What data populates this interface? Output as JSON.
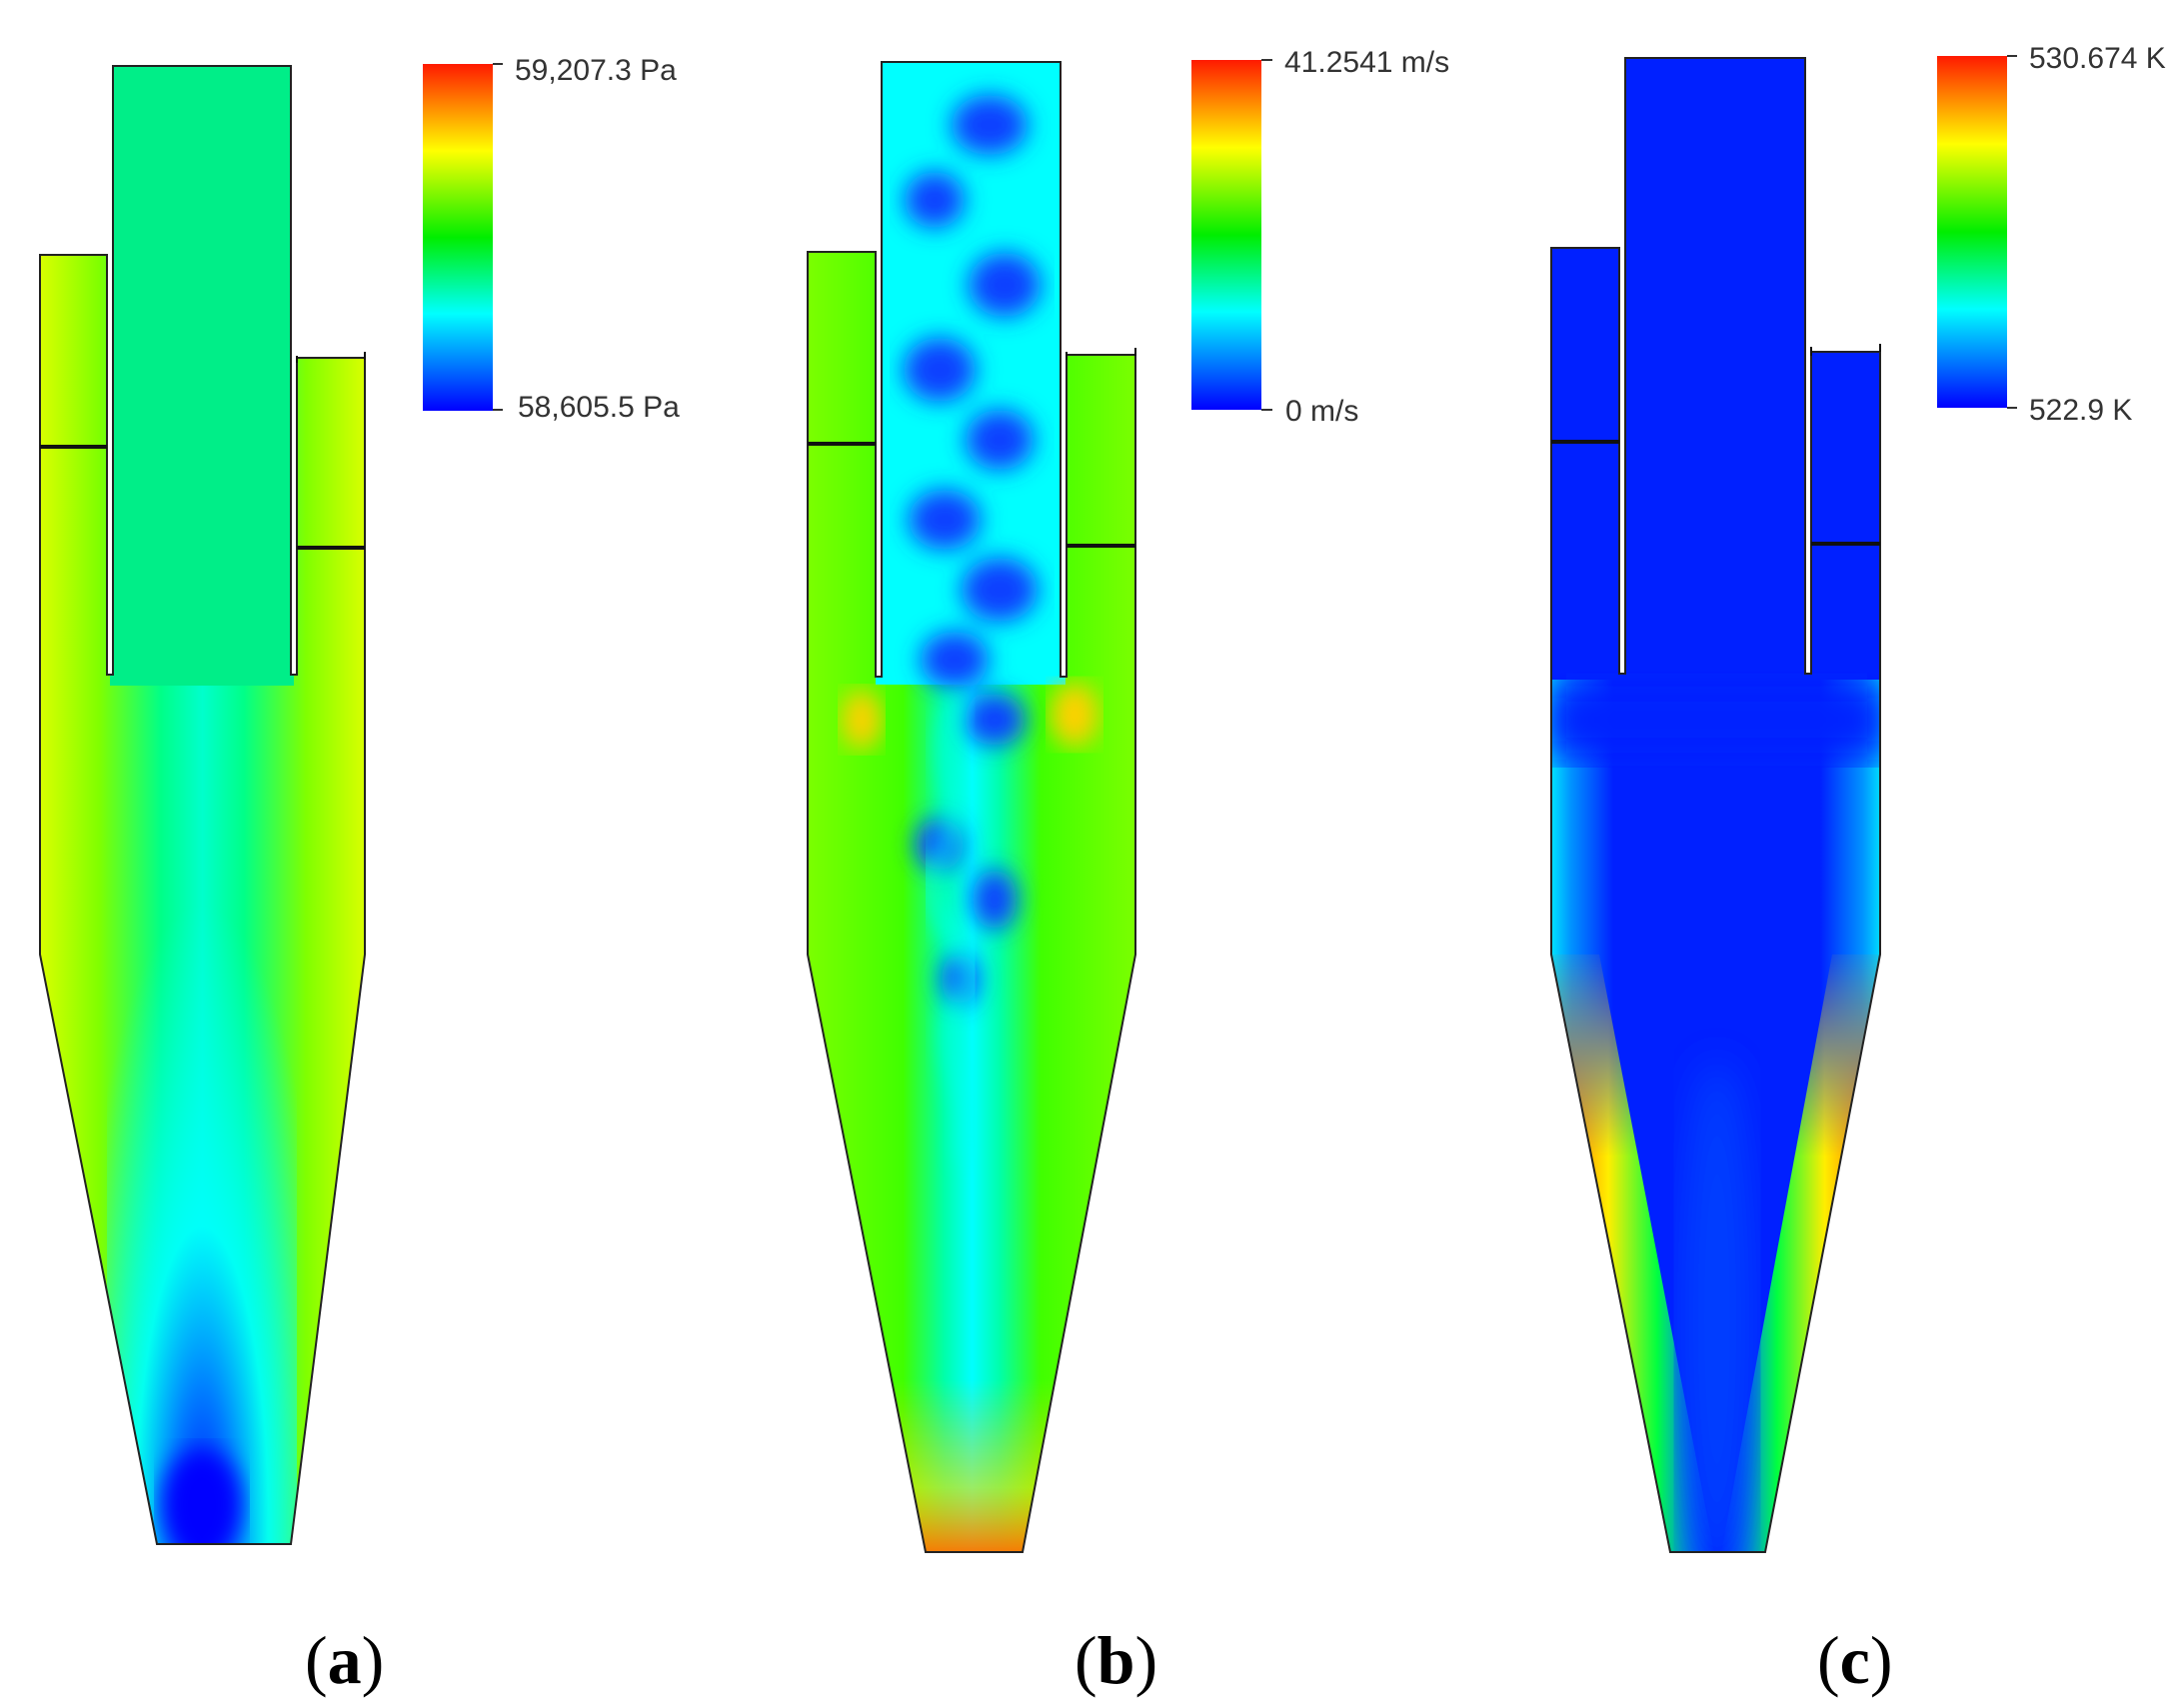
{
  "panels": [
    {
      "id": "a",
      "label": "a",
      "colorbar": {
        "max_label": "59,207.3 Pa",
        "min_label": "58,605.5 Pa"
      }
    },
    {
      "id": "b",
      "label": "b",
      "colorbar": {
        "max_label": "41.2541 m/s",
        "min_label": "0 m/s"
      }
    },
    {
      "id": "c",
      "label": "c",
      "colorbar": {
        "max_label": "530.674 K",
        "min_label": "522.9 K"
      }
    }
  ],
  "colormap": [
    "#ff0000",
    "#ffff00",
    "#00ff00",
    "#00ffff",
    "#0000ff"
  ],
  "paren_open": "(",
  "paren_close": ")"
}
